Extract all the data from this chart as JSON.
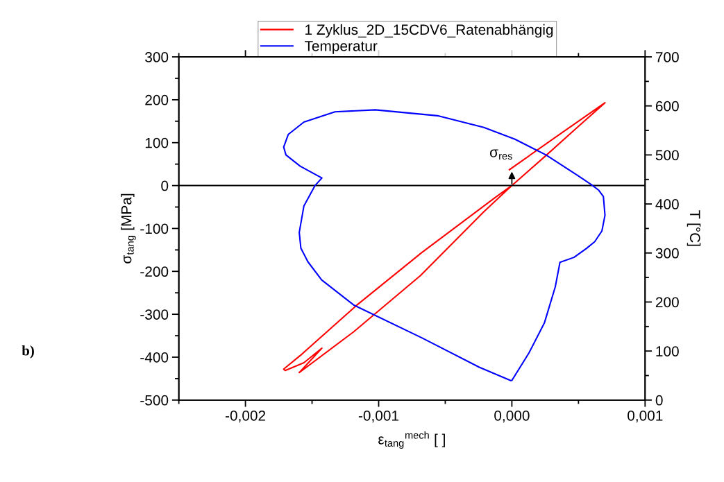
{
  "chart_data": {
    "type": "line",
    "xlabel": "ε$_{tang}$$^{mech}$ [ ]",
    "ylabel": "σ$_{tang}$ [MPa]",
    "y2label": "T [°C]",
    "xlim": [
      -0.0025,
      0.001
    ],
    "xticks": [
      {
        "value": -0.002,
        "label": "-0,002"
      },
      {
        "value": -0.001,
        "label": "-0,001"
      },
      {
        "value": 0,
        "label": "0,000"
      },
      {
        "value": 0.001,
        "label": "0,001"
      }
    ],
    "ylim": [
      -500,
      300
    ],
    "yticks": [
      -500,
      -400,
      -300,
      -200,
      -100,
      0,
      100,
      200,
      300
    ],
    "y2lim": [
      0,
      700
    ],
    "y2ticks": [
      0,
      100,
      200,
      300,
      400,
      500,
      600,
      700
    ],
    "legend": "top",
    "grid": false,
    "marker": "none",
    "line_style": "solid",
    "series": [
      {
        "name": "1 Zyklus_2D_15CDV6_Ratenabhängig",
        "color": "#ff0000",
        "x": [
          -1.86e-05,
          0.000361,
          0.000699,
          0.000489,
          0.000245,
          0,
          -0.00021,
          -0.000687,
          -0.001188,
          -0.001596,
          -0.001426,
          -0.001561,
          -0.001701,
          -0.001713,
          -0.001584,
          -0.001165,
          -0.000676,
          -0.000117,
          0
        ],
        "values": [
          37,
          120,
          193,
          135,
          67,
          0,
          -61,
          -210,
          -341,
          -436,
          -379,
          -413,
          -431,
          -428,
          -395,
          -279,
          -156,
          -26,
          0
        ]
      },
      {
        "name": "Temperatur",
        "color": "#0000ff",
        "axis": "y2",
        "x": [
          0,
          0.000128,
          0.000245,
          0.000326,
          0.000361,
          0.000466,
          0.000559,
          0.000622,
          0.000676,
          0.000699,
          0.000687,
          0.000652,
          0.000594,
          0.000489,
          0.000256,
          2.33e-05,
          -0.00021,
          -0.000559,
          -0.001025,
          -0.001328,
          -0.001561,
          -0.001678,
          -0.001713,
          -0.001696,
          -0.001589,
          -0.001426,
          -0.001479,
          -0.001561,
          -0.001596,
          -0.001584,
          -0.001531,
          -0.001428,
          -0.001188,
          -0.000676,
          -0.000245,
          -1e-05
        ],
        "values": [
          40,
          96,
          158,
          231,
          281,
          291,
          309,
          323,
          345,
          377,
          415,
          428,
          440,
          459,
          500,
          532,
          556,
          580,
          592,
          588,
          567,
          542,
          516,
          500,
          477,
          453,
          437,
          396,
          342,
          310,
          282,
          245,
          194,
          127,
          67,
          40
        ]
      }
    ],
    "ref_lines": [
      {
        "axis": "y",
        "value": 0,
        "color": "#000000"
      }
    ],
    "annotations": [
      {
        "text": "σ$_{res}$",
        "x": 0,
        "y": 37
      },
      "b)"
    ]
  }
}
